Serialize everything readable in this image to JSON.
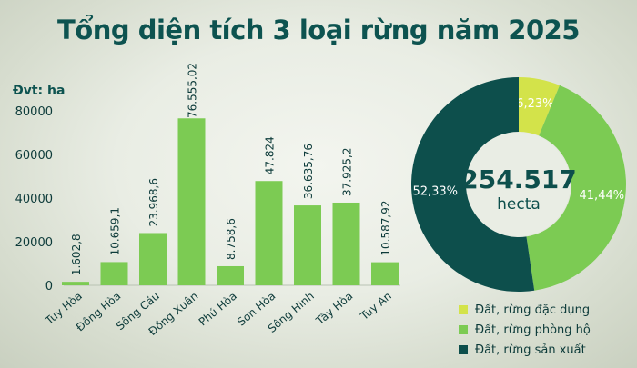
{
  "title": "Tổng diện tích 3 loại rừng năm 2025",
  "unit_label": "Đvt: ha",
  "chart_data": [
    {
      "type": "bar",
      "categories": [
        "Tuy Hòa",
        "Đông Hòa",
        "Sông Cầu",
        "Đồng Xuân",
        "Phú Hòa",
        "Sơn Hòa",
        "Sông Hinh",
        "Tây Hòa",
        "Tuy An"
      ],
      "values": [
        1602.8,
        10659.1,
        23968.6,
        76555.02,
        8758.6,
        47824,
        36635.76,
        37925.2,
        10587.92
      ],
      "value_labels": [
        "1.602,8",
        "10.659,1",
        "23.968,6",
        "76.555,02",
        "8.758,6",
        "47.824",
        "36.635,76",
        "37.925,2",
        "10.587,92"
      ],
      "yticks": [
        "0",
        "20000",
        "40000",
        "60000",
        "80000"
      ],
      "ylim": [
        0,
        80000
      ],
      "color": "#7ccb53",
      "grid": false
    },
    {
      "type": "pie",
      "style": "donut",
      "center_value": "254.517",
      "center_unit": "hecta",
      "slices": [
        {
          "name": "Đất, rừng đặc dụng",
          "value": 6.23,
          "label": "6,23%",
          "color": "#d3e34a"
        },
        {
          "name": "Đất, rừng phòng hộ",
          "value": 41.44,
          "label": "41,44%",
          "color": "#7ccb53"
        },
        {
          "name": "Đất, rừng sản xuất",
          "value": 52.33,
          "label": "52,33%",
          "color": "#0d4f4c"
        }
      ],
      "legend_position": "bottom-right"
    }
  ]
}
